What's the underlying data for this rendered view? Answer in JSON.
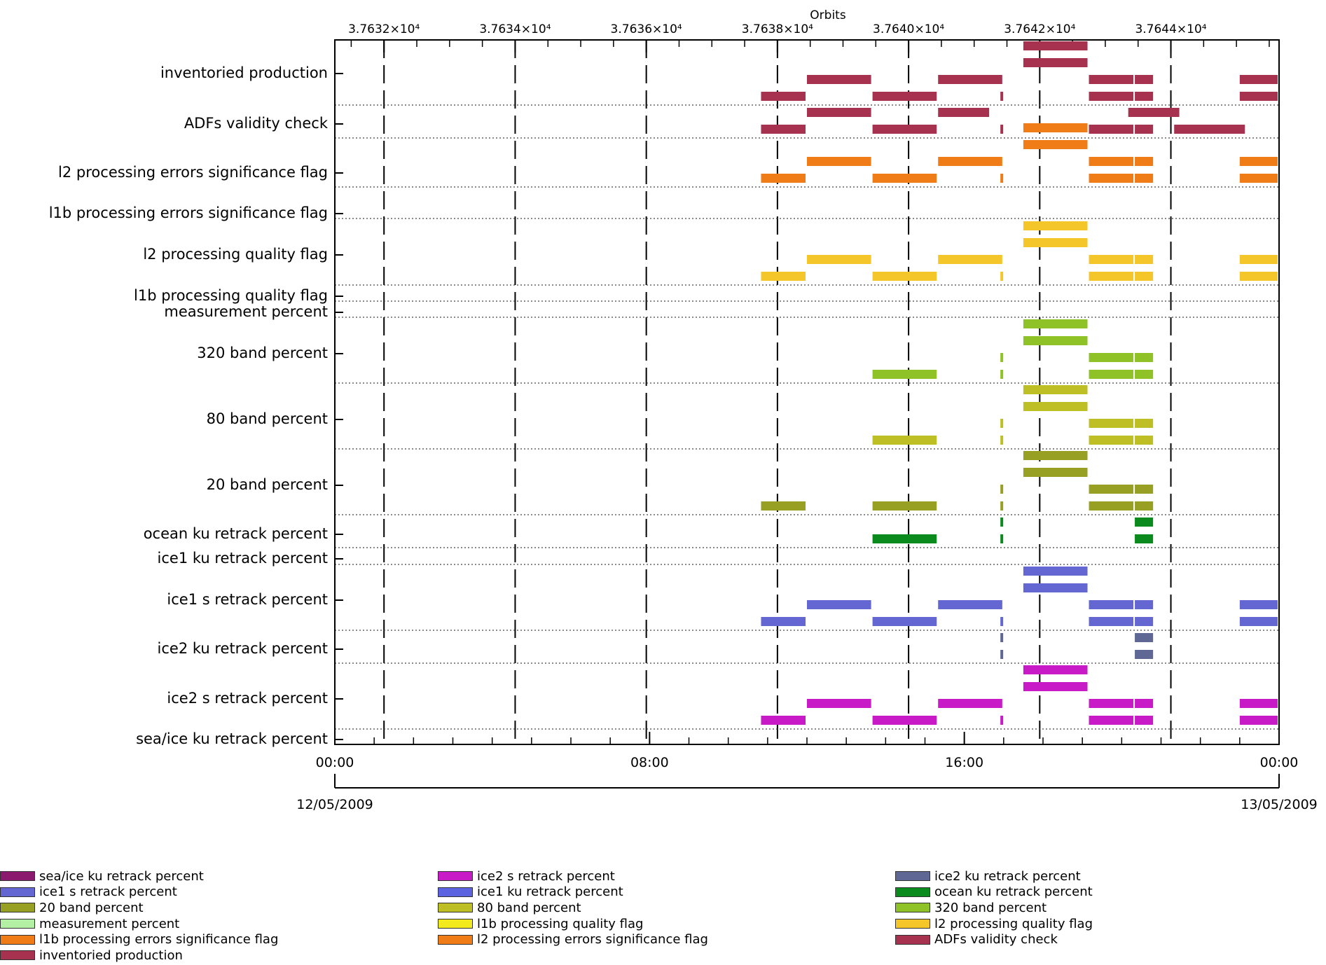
{
  "chart_data": {
    "type": "timeline",
    "title": "",
    "top_axis_label": "Orbits",
    "top_ticks": [
      "3.7632×10⁴",
      "3.7634×10⁴",
      "3.7636×10⁴",
      "3.7638×10⁴",
      "3.7640×10⁴",
      "3.7642×10⁴",
      "3.7644×10⁴"
    ],
    "top_tick_hours": [
      1.5,
      5.5,
      9.5,
      13.5,
      17.5,
      21.5,
      25.5
    ],
    "x_range_hours": [
      0,
      28.8
    ],
    "bottom_ticks": [
      {
        "hour": 0,
        "time": "00:00",
        "date": "12/05/2009"
      },
      {
        "hour": 9.6,
        "time": "08:00",
        "date": ""
      },
      {
        "hour": 19.2,
        "time": "16:00",
        "date": ""
      },
      {
        "hour": 28.8,
        "time": "00:00",
        "date": "13/05/2009"
      }
    ],
    "rows": [
      {
        "label": "inventoried production",
        "color": "#a7324f",
        "bars": [
          [
            21.0,
            23.0,
            4
          ],
          [
            21.0,
            23.0,
            3
          ],
          [
            14.4,
            16.4,
            2
          ],
          [
            18.4,
            20.4,
            2
          ],
          [
            23.0,
            24.4,
            2
          ],
          [
            24.4,
            25.0,
            2
          ],
          [
            27.6,
            28.8,
            2
          ],
          [
            13.0,
            14.4,
            1
          ],
          [
            16.4,
            18.4,
            1
          ],
          [
            20.3,
            20.4,
            1
          ],
          [
            23.0,
            24.4,
            1
          ],
          [
            24.4,
            25.0,
            1
          ],
          [
            27.6,
            28.8,
            1
          ]
        ]
      },
      {
        "label": "ADFs validity check",
        "color": "#a7324f",
        "bars": [
          [
            14.4,
            16.4,
            2
          ],
          [
            18.4,
            20.0,
            2
          ],
          [
            24.2,
            25.8,
            2
          ],
          [
            13.0,
            14.4,
            1
          ],
          [
            16.4,
            18.4,
            1
          ],
          [
            20.3,
            20.4,
            1
          ],
          [
            23.0,
            24.4,
            1
          ],
          [
            24.4,
            25.0,
            1
          ],
          [
            25.6,
            27.8,
            1
          ]
        ]
      },
      {
        "label": "l2 processing errors significance flag",
        "color": "#f07c18",
        "bars": [
          [
            21.0,
            23.0,
            4
          ],
          [
            21.0,
            23.0,
            3
          ],
          [
            14.4,
            16.4,
            2
          ],
          [
            18.4,
            20.4,
            2
          ],
          [
            23.0,
            24.4,
            2
          ],
          [
            24.4,
            25.0,
            2
          ],
          [
            27.6,
            28.8,
            2
          ],
          [
            13.0,
            14.4,
            1
          ],
          [
            16.4,
            18.4,
            1
          ],
          [
            20.3,
            20.4,
            1
          ],
          [
            23.0,
            24.4,
            1
          ],
          [
            24.4,
            25.0,
            1
          ],
          [
            27.6,
            28.8,
            1
          ]
        ]
      },
      {
        "label": "l1b processing errors significance flag",
        "color": "#f07c18",
        "bars": []
      },
      {
        "label": "l2 processing quality flag",
        "color": "#f4c629",
        "bars": [
          [
            21.0,
            23.0,
            4
          ],
          [
            21.0,
            23.0,
            3
          ],
          [
            14.4,
            16.4,
            2
          ],
          [
            18.4,
            20.4,
            2
          ],
          [
            23.0,
            24.4,
            2
          ],
          [
            24.4,
            25.0,
            2
          ],
          [
            27.6,
            28.8,
            2
          ],
          [
            13.0,
            14.4,
            1
          ],
          [
            16.4,
            18.4,
            1
          ],
          [
            20.3,
            20.4,
            1
          ],
          [
            23.0,
            24.4,
            1
          ],
          [
            24.4,
            25.0,
            1
          ],
          [
            27.6,
            28.8,
            1
          ]
        ]
      },
      {
        "label": "l1b processing quality flag",
        "color": "#f4c629",
        "bars": []
      },
      {
        "label": "measurement percent",
        "color": "#b3f0a3",
        "bars": []
      },
      {
        "label": "320 band percent",
        "color": "#8fc226",
        "bars": [
          [
            21.0,
            23.0,
            4
          ],
          [
            21.0,
            23.0,
            3
          ],
          [
            20.3,
            20.4,
            2
          ],
          [
            23.0,
            24.4,
            2
          ],
          [
            24.4,
            25.0,
            2
          ],
          [
            16.4,
            18.4,
            1
          ],
          [
            20.3,
            20.4,
            1
          ],
          [
            23.0,
            24.4,
            1
          ],
          [
            24.4,
            25.0,
            1
          ]
        ]
      },
      {
        "label": "80 band percent",
        "color": "#bdbf25",
        "bars": [
          [
            21.0,
            23.0,
            4
          ],
          [
            21.0,
            23.0,
            3
          ],
          [
            20.3,
            20.4,
            2
          ],
          [
            23.0,
            24.4,
            2
          ],
          [
            24.4,
            25.0,
            2
          ],
          [
            16.4,
            18.4,
            1
          ],
          [
            20.3,
            20.4,
            1
          ],
          [
            23.0,
            24.4,
            1
          ],
          [
            24.4,
            25.0,
            1
          ]
        ]
      },
      {
        "label": "20 band percent",
        "color": "#98a024",
        "bars": [
          [
            21.0,
            23.0,
            4
          ],
          [
            21.0,
            23.0,
            3
          ],
          [
            20.3,
            20.4,
            2
          ],
          [
            23.0,
            24.4,
            2
          ],
          [
            24.4,
            25.0,
            2
          ],
          [
            13.0,
            14.4,
            1
          ],
          [
            16.4,
            18.4,
            1
          ],
          [
            20.3,
            20.4,
            1
          ],
          [
            23.0,
            24.4,
            1
          ],
          [
            24.4,
            25.0,
            1
          ]
        ]
      },
      {
        "label": "ocean ku retrack percent",
        "color": "#0b8a1d",
        "bars": [
          [
            20.3,
            20.4,
            2
          ],
          [
            24.4,
            25.0,
            2
          ],
          [
            16.4,
            18.4,
            1
          ],
          [
            20.3,
            20.4,
            1
          ],
          [
            24.4,
            25.0,
            1
          ]
        ]
      },
      {
        "label": "ice1 ku retrack percent",
        "color": "#6467d2",
        "bars": []
      },
      {
        "label": "ice1 s retrack percent",
        "color": "#6467d2",
        "bars": [
          [
            21.0,
            23.0,
            4
          ],
          [
            21.0,
            23.0,
            3
          ],
          [
            14.4,
            16.4,
            2
          ],
          [
            18.4,
            20.4,
            2
          ],
          [
            23.0,
            24.4,
            2
          ],
          [
            24.4,
            25.0,
            2
          ],
          [
            27.6,
            28.8,
            2
          ],
          [
            13.0,
            14.4,
            1
          ],
          [
            16.4,
            18.4,
            1
          ],
          [
            20.3,
            20.4,
            1
          ],
          [
            23.0,
            24.4,
            1
          ],
          [
            24.4,
            25.0,
            1
          ],
          [
            27.6,
            28.8,
            1
          ]
        ]
      },
      {
        "label": "ice2 ku retrack percent",
        "color": "#5f6894",
        "bars": [
          [
            20.3,
            20.4,
            2
          ],
          [
            24.4,
            25.0,
            2
          ],
          [
            20.3,
            20.4,
            1
          ],
          [
            24.4,
            25.0,
            1
          ]
        ]
      },
      {
        "label": "ice2 s retrack percent",
        "color": "#c91ac7",
        "bars": [
          [
            21.0,
            23.0,
            4
          ],
          [
            21.0,
            23.0,
            3
          ],
          [
            14.4,
            16.4,
            2
          ],
          [
            18.4,
            20.4,
            2
          ],
          [
            23.0,
            24.4,
            2
          ],
          [
            24.4,
            25.0,
            2
          ],
          [
            27.6,
            28.8,
            2
          ],
          [
            13.0,
            14.4,
            1
          ],
          [
            16.4,
            18.4,
            1
          ],
          [
            20.3,
            20.4,
            1
          ],
          [
            23.0,
            24.4,
            1
          ],
          [
            24.4,
            25.0,
            1
          ],
          [
            27.6,
            28.8,
            1
          ]
        ]
      },
      {
        "label": "sea/ice ku retrack percent",
        "color": "#8b1a6f",
        "bars": []
      }
    ],
    "legend": [
      [
        {
          "label": "sea/ice ku retrack percent",
          "color": "#8b1a6f"
        },
        {
          "label": "ice1 s retrack percent",
          "color": "#6467d2"
        },
        {
          "label": "20 band percent",
          "color": "#98a024"
        },
        {
          "label": "measurement percent",
          "color": "#b3f0a3"
        },
        {
          "label": "l1b processing errors significance flag",
          "color": "#f07c18"
        },
        {
          "label": "inventoried production",
          "color": "#a7324f"
        }
      ],
      [
        {
          "label": "ice2 s retrack percent",
          "color": "#c91ac7"
        },
        {
          "label": "ice1 ku retrack percent",
          "color": "#5b63e0"
        },
        {
          "label": "80 band percent",
          "color": "#bdbf25"
        },
        {
          "label": "l1b processing quality flag",
          "color": "#f3ea1e"
        },
        {
          "label": "l2 processing errors significance flag",
          "color": "#f07c18"
        }
      ],
      [
        {
          "label": "ice2 ku retrack percent",
          "color": "#5f6894"
        },
        {
          "label": "ocean ku retrack percent",
          "color": "#0b8a1d"
        },
        {
          "label": "320 band percent",
          "color": "#8fc226"
        },
        {
          "label": "l2 processing quality flag",
          "color": "#f4c629"
        },
        {
          "label": "ADFs validity check",
          "color": "#a7324f"
        }
      ]
    ]
  }
}
